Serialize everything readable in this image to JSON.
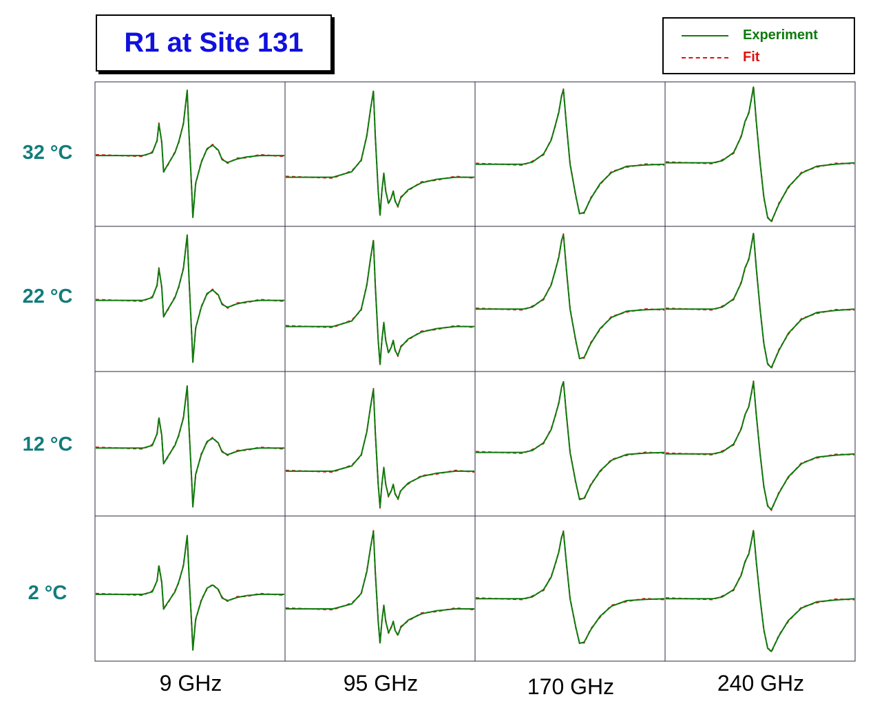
{
  "title": "R1 at Site 131",
  "legend": {
    "experiment": {
      "label": "Experiment",
      "color": "#0e7a0e"
    },
    "fit": {
      "label": "Fit",
      "color": "#e01010"
    }
  },
  "row_labels": [
    "32 °C",
    "22 °C",
    "12 °C",
    "2 °C"
  ],
  "col_labels": [
    "9 GHz",
    "95 GHz",
    "170 GHz",
    "240 GHz"
  ],
  "chart_data": {
    "type": "line",
    "layout": "4x4 grid of EPR spectra; rows = temperature, columns = frequency",
    "rows": [
      "32 °C",
      "22 °C",
      "12 °C",
      "2 °C"
    ],
    "columns": [
      "9 GHz",
      "95 GHz",
      "170 GHz",
      "240 GHz"
    ],
    "series": [
      {
        "name": "Experiment",
        "color": "#0e7a0e",
        "style": "solid"
      },
      {
        "name": "Fit",
        "color": "#e01010",
        "style": "dashed"
      }
    ],
    "axes_visible": false,
    "grid": false,
    "legend_position": "top-right",
    "note_values": "Spectra are unitless derivative line shapes; no axis values are printed."
  }
}
